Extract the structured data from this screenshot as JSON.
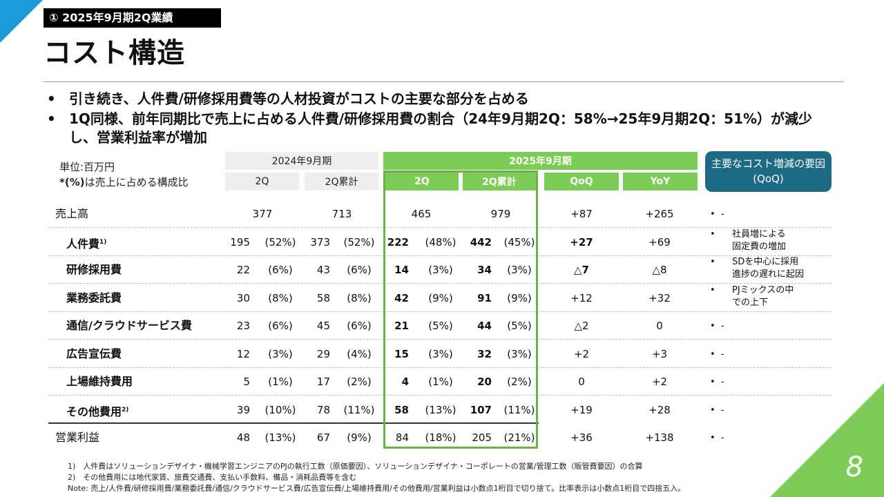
{
  "section_tag": "① 2025年9月期2Q業績",
  "page_title": "コスト構造",
  "page_number": "8",
  "bullets": [
    "引き続き、人件費/研修採用費等の人材投資がコストの主要な部分を占める",
    "1Q同様、前年同期比で売上に占める人件費/研修採用費の割合（24年9月期2Q：58%→25年9月期2Q：51%）が減少し、営業利益率が増加"
  ],
  "table": {
    "unit_label": "単位:百万円",
    "unit_note_mark": "*(%)",
    "unit_note_text": "は売上に占める構成比",
    "fy2024_header": "2024年9月期",
    "fy2025_header": "2025年9月期",
    "col_headers": {
      "q2_2024": "2Q",
      "cum_2024": "2Q累計",
      "q2_2025": "2Q",
      "cum_2025": "2Q累計",
      "qoq": "QoQ",
      "yoy": "YoY"
    },
    "factor_header": "主要なコスト増減の要因(QoQ)",
    "rows": [
      {
        "label": "売上高",
        "sup": "",
        "q2_24": "377",
        "q2_24_pct": "",
        "cum_24": "713",
        "cum_24_pct": "",
        "q2_25": "465",
        "q2_25_pct": "",
        "cum_25": "979",
        "cum_25_pct": "",
        "qoq": "+87",
        "yoy": "+265",
        "factor": "-"
      },
      {
        "label": "人件費",
        "sup": "1)",
        "q2_24": "195",
        "q2_24_pct": "(52%)",
        "cum_24": "373",
        "cum_24_pct": "(52%)",
        "q2_25": "222",
        "q2_25_pct": "(48%)",
        "cum_25": "442",
        "cum_25_pct": "(45%)",
        "qoq": "+27",
        "yoy": "+69",
        "factor": "社員増による\n固定費の増加"
      },
      {
        "label": "研修採用費",
        "sup": "",
        "q2_24": "22",
        "q2_24_pct": "(6%)",
        "cum_24": "43",
        "cum_24_pct": "(6%)",
        "q2_25": "14",
        "q2_25_pct": "(3%)",
        "cum_25": "34",
        "cum_25_pct": "(3%)",
        "qoq": "△7",
        "yoy": "△8",
        "factor": "SDを中心に採用\n進捗の遅れに起因"
      },
      {
        "label": "業務委託費",
        "sup": "",
        "q2_24": "30",
        "q2_24_pct": "(8%)",
        "cum_24": "58",
        "cum_24_pct": "(8%)",
        "q2_25": "42",
        "q2_25_pct": "(9%)",
        "cum_25": "91",
        "cum_25_pct": "(9%)",
        "qoq": "+12",
        "yoy": "+32",
        "factor": "PJミックスの中\nでの上下"
      },
      {
        "label": "通信/クラウドサービス費",
        "sup": "",
        "q2_24": "23",
        "q2_24_pct": "(6%)",
        "cum_24": "45",
        "cum_24_pct": "(6%)",
        "q2_25": "21",
        "q2_25_pct": "(5%)",
        "cum_25": "44",
        "cum_25_pct": "(5%)",
        "qoq": "△2",
        "yoy": "0",
        "factor": "-"
      },
      {
        "label": "広告宣伝費",
        "sup": "",
        "q2_24": "12",
        "q2_24_pct": "(3%)",
        "cum_24": "29",
        "cum_24_pct": "(4%)",
        "q2_25": "15",
        "q2_25_pct": "(3%)",
        "cum_25": "32",
        "cum_25_pct": "(3%)",
        "qoq": "+2",
        "yoy": "+3",
        "factor": "-"
      },
      {
        "label": "上場維持費用",
        "sup": "",
        "q2_24": "5",
        "q2_24_pct": "(1%)",
        "cum_24": "17",
        "cum_24_pct": "(2%)",
        "q2_25": "4",
        "q2_25_pct": "(1%)",
        "cum_25": "20",
        "cum_25_pct": "(2%)",
        "qoq": "0",
        "yoy": "+2",
        "factor": "-"
      },
      {
        "label": "その他費用",
        "sup": "2)",
        "q2_24": "39",
        "q2_24_pct": "(10%)",
        "cum_24": "78",
        "cum_24_pct": "(11%)",
        "q2_25": "58",
        "q2_25_pct": "(13%)",
        "cum_25": "107",
        "cum_25_pct": "(11%)",
        "qoq": "+19",
        "yoy": "+28",
        "factor": "-"
      },
      {
        "label": "営業利益",
        "sup": "",
        "q2_24": "48",
        "q2_24_pct": "(13%)",
        "cum_24": "67",
        "cum_24_pct": "(9%)",
        "q2_25": "84",
        "q2_25_pct": "(18%)",
        "cum_25": "205",
        "cum_25_pct": "(21%)",
        "qoq": "+36",
        "yoy": "+138",
        "factor": "-"
      }
    ]
  },
  "footnotes": [
    "1)　人件費はソリューションデザイナ・機械学習エンジニアのPJの執行工数（原価要因）、ソリューションデザイナ・コーポレートの営業/管理工数（販管費要因）の合算",
    "2)　その他費用には地代家賃、旅費交通費、支払い手数料、備品・消耗品費等を含む",
    "Note: 売上/人件費/研修採用費/業務委託費/通信/クラウドサービス費/広告宣伝費/上場維持費用/その他費用/営業利益は小数点1桁目で切り捨て。比率表示は小数点1桁目で四捨五入。"
  ],
  "colors": {
    "accent_blue": "#1b9bd7",
    "accent_green": "#7dcc57",
    "highlight_border": "#6cb246",
    "factor_box": "#1d6a84"
  }
}
